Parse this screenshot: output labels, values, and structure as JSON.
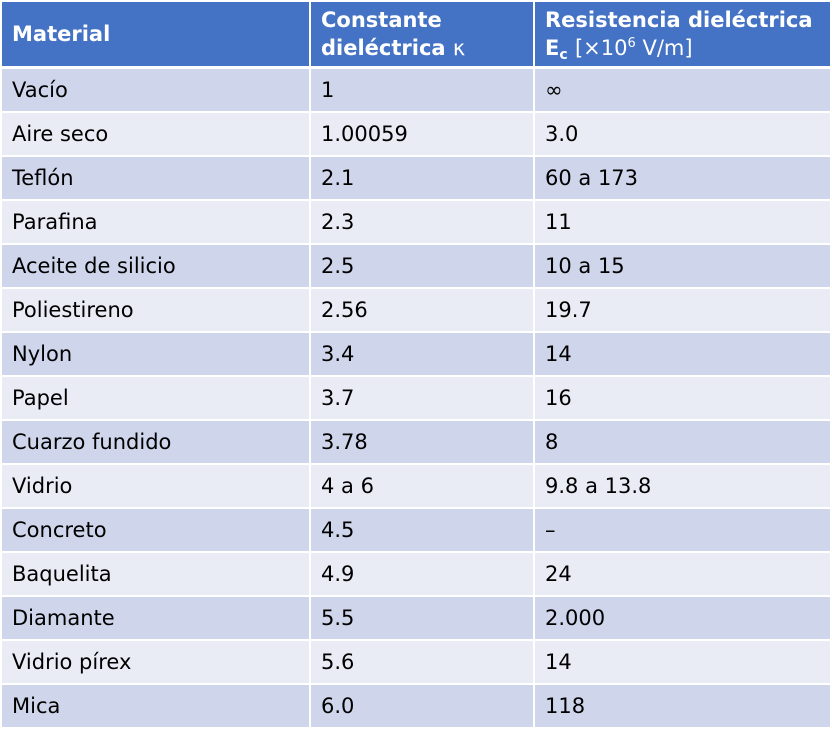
{
  "colors": {
    "header_bg": "#4472c4",
    "row_dark": "#cfd5ea",
    "row_light": "#e9ebf5"
  },
  "header": {
    "col1": "Material",
    "col2_line1": "Constante",
    "col2_line2": "dieléctrica",
    "col2_symbol": "κ",
    "col3_line1": "Resistencia dieléctrica",
    "col3_symbol": "E",
    "col3_subscript": "c",
    "col3_unit_prefix": "[×10",
    "col3_unit_exp": "6",
    "col3_unit_suffix": " V/m]"
  },
  "rows": [
    {
      "material": "Vacío",
      "constant": "1",
      "strength": "∞"
    },
    {
      "material": "Aire seco",
      "constant": "1.00059",
      "strength": "3.0"
    },
    {
      "material": "Teflón",
      "constant": "2.1",
      "strength": "60 a 173"
    },
    {
      "material": "Parafina",
      "constant": "2.3",
      "strength": "11"
    },
    {
      "material": "Aceite de silicio",
      "constant": "2.5",
      "strength": "10 a 15"
    },
    {
      "material": "Poliestireno",
      "constant": "2.56",
      "strength": "19.7"
    },
    {
      "material": "Nylon",
      "constant": "3.4",
      "strength": "14"
    },
    {
      "material": "Papel",
      "constant": "3.7",
      "strength": "16"
    },
    {
      "material": "Cuarzo fundido",
      "constant": "3.78",
      "strength": "8"
    },
    {
      "material": "Vidrio",
      "constant": "4 a 6",
      "strength": "9.8 a 13.8"
    },
    {
      "material": "Concreto",
      "constant": "4.5",
      "strength": "–"
    },
    {
      "material": "Baquelita",
      "constant": "4.9",
      "strength": "24"
    },
    {
      "material": "Diamante",
      "constant": "5.5",
      "strength": "2.000"
    },
    {
      "material": "Vidrio pírex",
      "constant": "5.6",
      "strength": "14"
    },
    {
      "material": "Mica",
      "constant": "6.0",
      "strength": "118"
    }
  ]
}
